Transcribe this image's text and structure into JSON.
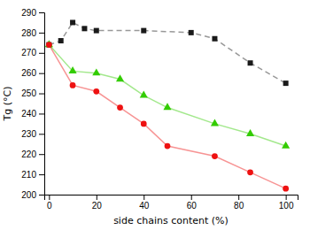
{
  "chart_data": {
    "type": "line",
    "xlabel": "side chains content (%)",
    "ylabel": "Tg (°C)",
    "xlim": [
      -2,
      105
    ],
    "ylim": [
      200,
      290
    ],
    "xticks": [
      0,
      20,
      40,
      60,
      80,
      100
    ],
    "yticks": [
      200,
      210,
      220,
      230,
      240,
      250,
      260,
      270,
      280,
      290
    ],
    "grid": false,
    "series": [
      {
        "x": [
          0,
          5,
          10,
          15,
          20,
          40,
          60,
          70,
          85,
          100
        ],
        "values": [
          274,
          276,
          285,
          282,
          281,
          281,
          280,
          277,
          265,
          255
        ],
        "color": "#1a1a1a",
        "marker": "square",
        "line_style": "dashed"
      },
      {
        "x": [
          0,
          10,
          20,
          30,
          40,
          50,
          70,
          85,
          100
        ],
        "values": [
          274,
          261,
          260,
          257,
          249,
          243,
          235,
          230,
          224
        ],
        "color": "#33cc00",
        "marker": "triangle",
        "line_style": "solid"
      },
      {
        "x": [
          0,
          10,
          20,
          30,
          40,
          50,
          70,
          85,
          100
        ],
        "values": [
          274,
          254,
          251,
          243,
          235,
          224,
          219,
          211,
          203
        ],
        "color": "#ee1111",
        "marker": "circle",
        "line_style": "solid"
      }
    ]
  }
}
